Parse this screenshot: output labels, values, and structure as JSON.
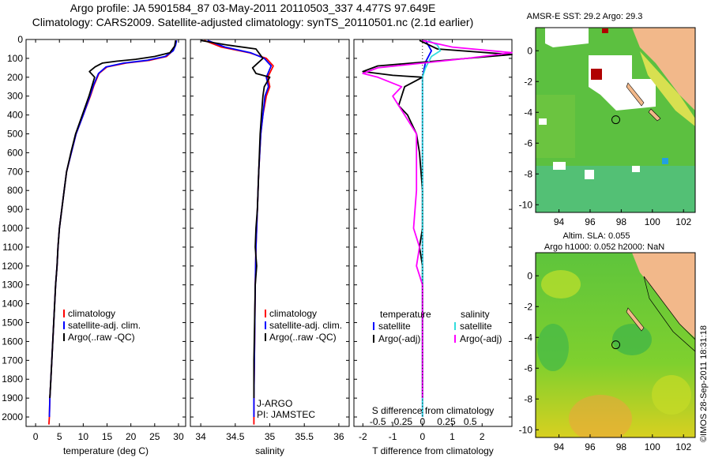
{
  "title": {
    "line1": "Argo profile: JA 5901584_87 03-May-2011 20110503_337 4.477S 97.649E",
    "line2": "Climatology: CARS2009. Satellite-adjusted climatology: synTS_20110501.nc (2.1d earlier)"
  },
  "colors": {
    "clim": "#ff0000",
    "sat": "#0000ff",
    "argo": "#000000",
    "sat_s": "#33dddd",
    "argo_s": "#ff00ff"
  },
  "chart_data": [
    {
      "type": "line",
      "id": "temperature",
      "xlabel": "temperature (deg C)",
      "ylabel": "",
      "xlim": [
        -2,
        31.5
      ],
      "ylim": [
        2050,
        0
      ],
      "xticks": [
        0,
        5,
        10,
        15,
        20,
        25,
        30
      ],
      "yticks": [
        0,
        100,
        200,
        300,
        400,
        500,
        600,
        700,
        800,
        900,
        1000,
        1100,
        1200,
        1300,
        1400,
        1500,
        1600,
        1700,
        1800,
        1900,
        2000
      ],
      "legend": [
        "climatology",
        "satellite-adj. clim.",
        "Argo(..raw -QC)"
      ],
      "series": [
        {
          "name": "climatology",
          "color": "clim",
          "points": [
            [
              29.5,
              5
            ],
            [
              29.3,
              30
            ],
            [
              28.8,
              60
            ],
            [
              27.5,
              90
            ],
            [
              24,
              110
            ],
            [
              19,
              125
            ],
            [
              15,
              145
            ],
            [
              13.3,
              180
            ],
            [
              12.3,
              240
            ],
            [
              11.5,
              300
            ],
            [
              10,
              400
            ],
            [
              8.5,
              500
            ],
            [
              7.5,
              600
            ],
            [
              6.5,
              700
            ],
            [
              6,
              800
            ],
            [
              5.5,
              900
            ],
            [
              5,
              1000
            ],
            [
              4.7,
              1100
            ],
            [
              4.5,
              1200
            ],
            [
              4.2,
              1300
            ],
            [
              4,
              1400
            ],
            [
              3.8,
              1500
            ],
            [
              3.6,
              1600
            ],
            [
              3.4,
              1700
            ],
            [
              3.2,
              1800
            ],
            [
              3,
              1900
            ],
            [
              2.9,
              2000
            ],
            [
              2.8,
              2040
            ]
          ]
        },
        {
          "name": "satellite-adj. clim.",
          "color": "sat",
          "points": [
            [
              29.6,
              5
            ],
            [
              29.4,
              30
            ],
            [
              28.9,
              60
            ],
            [
              27.2,
              90
            ],
            [
              23.5,
              110
            ],
            [
              18.5,
              125
            ],
            [
              14.8,
              145
            ],
            [
              13.2,
              180
            ],
            [
              12.2,
              240
            ],
            [
              11.4,
              300
            ],
            [
              10,
              400
            ],
            [
              8.5,
              500
            ],
            [
              7.5,
              600
            ],
            [
              6.5,
              700
            ],
            [
              6,
              800
            ],
            [
              5.5,
              900
            ],
            [
              5,
              1000
            ],
            [
              4.7,
              1100
            ],
            [
              4.5,
              1200
            ],
            [
              4.2,
              1300
            ],
            [
              4,
              1400
            ],
            [
              3.8,
              1500
            ],
            [
              3.6,
              1600
            ],
            [
              3.4,
              1700
            ],
            [
              3.2,
              1800
            ],
            [
              3,
              1900
            ],
            [
              2.9,
              2000
            ]
          ]
        },
        {
          "name": "Argo(..raw -QC)",
          "color": "argo",
          "points": [
            [
              29.4,
              5
            ],
            [
              29.2,
              35
            ],
            [
              28.2,
              70
            ],
            [
              25,
              90
            ],
            [
              21,
              105
            ],
            [
              17,
              115
            ],
            [
              14,
              125
            ],
            [
              12.5,
              145
            ],
            [
              11.3,
              170
            ],
            [
              12.4,
              200
            ],
            [
              11.8,
              250
            ],
            [
              11.2,
              300
            ],
            [
              9.8,
              400
            ],
            [
              8.4,
              500
            ],
            [
              7.4,
              600
            ],
            [
              6.5,
              700
            ],
            [
              6,
              800
            ],
            [
              5.5,
              900
            ],
            [
              5,
              1000
            ],
            [
              4.7,
              1100
            ],
            [
              4.5,
              1200
            ],
            [
              4.2,
              1300
            ],
            [
              4,
              1400
            ],
            [
              3.8,
              1500
            ],
            [
              3.6,
              1600
            ],
            [
              3.4,
              1700
            ],
            [
              3.2,
              1800
            ],
            [
              3,
              1900
            ]
          ]
        }
      ]
    },
    {
      "type": "line",
      "id": "salinity",
      "xlabel": "salinity",
      "ylabel": "",
      "xlim": [
        33.85,
        36.15
      ],
      "ylim": [
        2050,
        0
      ],
      "xticks": [
        34,
        34.5,
        35,
        35.5,
        36
      ],
      "legend": [
        "climatology",
        "satellite-adj. clim.",
        "Argo(..raw -QC)"
      ],
      "annotations": [
        "J-ARGO",
        "PI: JAMSTEC"
      ],
      "series": [
        {
          "name": "climatology",
          "color": "clim",
          "points": [
            [
              34.05,
              5
            ],
            [
              34.3,
              40
            ],
            [
              34.7,
              70
            ],
            [
              34.95,
              100
            ],
            [
              35.05,
              140
            ],
            [
              34.97,
              200
            ],
            [
              35,
              250
            ],
            [
              34.95,
              300
            ],
            [
              34.9,
              400
            ],
            [
              34.87,
              500
            ],
            [
              34.84,
              700
            ],
            [
              34.82,
              900
            ],
            [
              34.8,
              1100
            ],
            [
              34.79,
              1300
            ],
            [
              34.78,
              1600
            ],
            [
              34.77,
              1900
            ],
            [
              34.77,
              2040
            ]
          ]
        },
        {
          "name": "satellite-adj. clim.",
          "color": "sat",
          "points": [
            [
              34.1,
              5
            ],
            [
              34.35,
              40
            ],
            [
              34.72,
              70
            ],
            [
              34.92,
              100
            ],
            [
              35.02,
              140
            ],
            [
              34.95,
              200
            ],
            [
              34.98,
              250
            ],
            [
              34.93,
              300
            ],
            [
              34.9,
              400
            ],
            [
              34.87,
              500
            ],
            [
              34.84,
              700
            ],
            [
              34.82,
              900
            ],
            [
              34.8,
              1100
            ],
            [
              34.79,
              1300
            ],
            [
              34.78,
              1600
            ],
            [
              34.77,
              1900
            ],
            [
              34.77,
              2000
            ]
          ]
        },
        {
          "name": "Argo(..raw -QC)",
          "color": "argo",
          "points": [
            [
              34,
              5
            ],
            [
              34.4,
              30
            ],
            [
              34.8,
              50
            ],
            [
              34.85,
              75
            ],
            [
              34.9,
              100
            ],
            [
              34.75,
              150
            ],
            [
              34.8,
              180
            ],
            [
              35,
              200
            ],
            [
              34.92,
              250
            ],
            [
              34.9,
              300
            ],
            [
              34.88,
              400
            ],
            [
              34.86,
              500
            ],
            [
              34.84,
              700
            ],
            [
              34.82,
              900
            ],
            [
              34.8,
              1000
            ],
            [
              34.79,
              1100
            ],
            [
              34.81,
              1200
            ],
            [
              34.79,
              1300
            ],
            [
              34.78,
              1500
            ],
            [
              34.77,
              1700
            ],
            [
              34.77,
              1900
            ]
          ]
        }
      ]
    },
    {
      "type": "line",
      "id": "differences",
      "xlabel": "T difference from climatology",
      "top_axis_label": "S difference from climatology",
      "xlim": [
        -2.3,
        3
      ],
      "ylim": [
        2050,
        0
      ],
      "xticks": [
        -2,
        -1,
        0,
        1,
        2
      ],
      "top_xticks": [
        "-0.5",
        "-0.25",
        "0",
        "0.25",
        "0.5"
      ],
      "legend_headers": [
        "temperature",
        "salinity"
      ],
      "legend": [
        "satellite",
        "Argo(-adj)",
        "satellite",
        "Argo(-adj)"
      ],
      "series": [
        {
          "name": "temperature satellite",
          "color": "sat",
          "points": [
            [
              0.1,
              5
            ],
            [
              0.3,
              60
            ],
            [
              0.1,
              120
            ],
            [
              0,
              200
            ],
            [
              0,
              400
            ],
            [
              0,
              800
            ],
            [
              0,
              1200
            ],
            [
              0,
              1600
            ],
            [
              0,
              2000
            ]
          ]
        },
        {
          "name": "temperature Argo(-adj)",
          "color": "argo",
          "points": [
            [
              -0.1,
              5
            ],
            [
              0.5,
              50
            ],
            [
              3,
              80
            ],
            [
              -1.5,
              140
            ],
            [
              -2,
              170
            ],
            [
              -1,
              190
            ],
            [
              0,
              200
            ],
            [
              -0.6,
              250
            ],
            [
              -0.8,
              350
            ],
            [
              -0.5,
              400
            ],
            [
              -0.2,
              500
            ],
            [
              -0.1,
              600
            ],
            [
              0,
              800
            ],
            [
              0,
              1000
            ],
            [
              -0.1,
              1100
            ],
            [
              0,
              1200
            ],
            [
              0,
              1600
            ],
            [
              0,
              1900
            ]
          ]
        },
        {
          "name": "salinity satellite",
          "color": "sat_s",
          "points": [
            [
              0.2,
              5
            ],
            [
              0.5,
              30
            ],
            [
              0.6,
              60
            ],
            [
              0.3,
              90
            ],
            [
              0.1,
              150
            ],
            [
              0,
              200
            ],
            [
              0,
              300
            ],
            [
              0,
              500
            ],
            [
              0,
              800
            ],
            [
              0,
              1200
            ],
            [
              0,
              1600
            ],
            [
              0,
              2000
            ]
          ]
        },
        {
          "name": "salinity Argo(-adj)",
          "color": "argo_s",
          "points": [
            [
              0,
              5
            ],
            [
              1,
              40
            ],
            [
              3,
              70
            ],
            [
              1.5,
              100
            ],
            [
              -1.5,
              150
            ],
            [
              -2,
              180
            ],
            [
              -1.5,
              200
            ],
            [
              -0.7,
              250
            ],
            [
              -1,
              300
            ],
            [
              -0.6,
              400
            ],
            [
              -0.2,
              500
            ],
            [
              -0.2,
              800
            ],
            [
              -0.3,
              1000
            ],
            [
              -0.1,
              1100
            ],
            [
              -0.2,
              1200
            ],
            [
              0,
              1300
            ],
            [
              0,
              1500
            ],
            [
              0,
              1700
            ],
            [
              0,
              1900
            ]
          ]
        }
      ]
    },
    {
      "type": "heatmap",
      "id": "sst_map",
      "title": "AMSR-E SST: 29.2 Argo: 29.3",
      "xticks": [
        94,
        96,
        98,
        100,
        102
      ],
      "yticks": [
        0,
        -2,
        -4,
        -6,
        -8,
        -10
      ],
      "xlim": [
        92.5,
        102.75
      ],
      "ylim": [
        -10.5,
        1.5
      ],
      "marker": {
        "lon": 97.649,
        "lat": -4.477
      }
    },
    {
      "type": "heatmap",
      "id": "sla_map",
      "title": "Altim. SLA: 0.055",
      "subtitle": "Argo h1000: 0.052 h2000: NaN",
      "xticks": [
        94,
        96,
        98,
        100,
        102
      ],
      "yticks": [
        0,
        -2,
        -4,
        -6,
        -8,
        -10
      ],
      "xlim": [
        92.5,
        102.75
      ],
      "ylim": [
        -10.5,
        1.5
      ],
      "marker": {
        "lon": 97.649,
        "lat": -4.477
      }
    }
  ],
  "stamp": "©IMOS 28-Sep-2011 18:31:18"
}
